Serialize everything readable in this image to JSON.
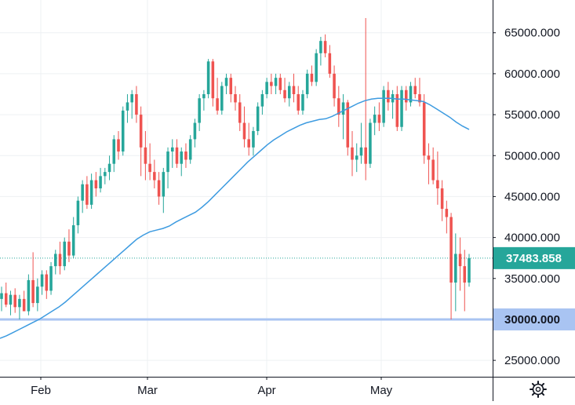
{
  "chart_data": {
    "type": "candlestick",
    "x_ticks": [
      "Feb",
      "Mar",
      "Apr",
      "May"
    ],
    "y_ticks": [
      25000,
      30000,
      35000,
      40000,
      45000,
      50000,
      55000,
      60000,
      65000
    ],
    "y_tick_labels": [
      "25000.000",
      "30000.000",
      "35000.000",
      "40000.000",
      "45000.000",
      "50000.000",
      "55000.000",
      "60000.000",
      "65000.000"
    ],
    "ylim": [
      23000,
      69000
    ],
    "grid": true,
    "last_price": 37483.858,
    "last_price_label": "37483.858",
    "horizontal_line_value": 30000,
    "horizontal_line_label": "30000.000",
    "colors": {
      "up": "#26a69a",
      "down": "#ef5350",
      "moving_average": "#3d9be0",
      "horizontal_line": "#a9c4f2",
      "last_price_badge": "#26a69a",
      "grid": "#eef0f3"
    },
    "candles": [
      [
        32500,
        34000,
        31000,
        33200
      ],
      [
        33200,
        34500,
        31500,
        31800
      ],
      [
        31800,
        33500,
        30500,
        33000
      ],
      [
        33000,
        33800,
        30800,
        31500
      ],
      [
        31500,
        33000,
        30000,
        32500
      ],
      [
        32500,
        33500,
        31000,
        31000
      ],
      [
        31000,
        35500,
        30500,
        34800
      ],
      [
        34800,
        38200,
        31500,
        32000
      ],
      [
        32000,
        35000,
        31000,
        34000
      ],
      [
        34000,
        36000,
        33000,
        35500
      ],
      [
        35500,
        36000,
        32500,
        33500
      ],
      [
        33500,
        37000,
        33000,
        36500
      ],
      [
        36500,
        38500,
        35500,
        38000
      ],
      [
        38000,
        39500,
        35500,
        36500
      ],
      [
        36500,
        40000,
        36000,
        39500
      ],
      [
        39500,
        41000,
        37000,
        37800
      ],
      [
        37800,
        42500,
        37500,
        41500
      ],
      [
        41500,
        45000,
        40500,
        44500
      ],
      [
        44500,
        47000,
        43000,
        46500
      ],
      [
        46500,
        47500,
        43500,
        44000
      ],
      [
        44000,
        47800,
        43500,
        47000
      ],
      [
        47000,
        48000,
        45000,
        46000
      ],
      [
        46000,
        48500,
        45500,
        47500
      ],
      [
        47500,
        48500,
        46500,
        48000
      ],
      [
        48000,
        50000,
        47000,
        49000
      ],
      [
        49000,
        52500,
        48000,
        52000
      ],
      [
        52000,
        53000,
        49500,
        50500
      ],
      [
        50500,
        56000,
        50000,
        55500
      ],
      [
        55500,
        57500,
        54000,
        56500
      ],
      [
        56500,
        58000,
        54500,
        57500
      ],
      [
        57500,
        58500,
        54000,
        55000
      ],
      [
        55000,
        56000,
        47500,
        51000
      ],
      [
        51000,
        53000,
        47000,
        49000
      ],
      [
        49000,
        51500,
        47000,
        48000
      ],
      [
        48000,
        49500,
        46000,
        47000
      ],
      [
        47000,
        48000,
        44000,
        45000
      ],
      [
        45000,
        48500,
        43000,
        48000
      ],
      [
        48000,
        51000,
        46000,
        50500
      ],
      [
        50500,
        52000,
        48500,
        51000
      ],
      [
        51000,
        52000,
        48500,
        49000
      ],
      [
        49000,
        51000,
        47500,
        50500
      ],
      [
        50500,
        51500,
        48500,
        49500
      ],
      [
        49500,
        52500,
        49000,
        52000
      ],
      [
        52000,
        54500,
        51000,
        54000
      ],
      [
        54000,
        57500,
        53000,
        57000
      ],
      [
        57000,
        58000,
        55500,
        57500
      ],
      [
        57500,
        61800,
        57000,
        61500
      ],
      [
        61500,
        61800,
        56000,
        57000
      ],
      [
        57000,
        59500,
        55000,
        55500
      ],
      [
        55500,
        59000,
        55000,
        58500
      ],
      [
        58500,
        60000,
        57500,
        59500
      ],
      [
        59500,
        60000,
        56500,
        57500
      ],
      [
        57500,
        58500,
        55500,
        56500
      ],
      [
        56500,
        57500,
        53000,
        54000
      ],
      [
        54000,
        56000,
        51000,
        52000
      ],
      [
        52000,
        54000,
        50000,
        51000
      ],
      [
        51000,
        53500,
        50000,
        53000
      ],
      [
        53000,
        56500,
        52500,
        56000
      ],
      [
        56000,
        58000,
        55000,
        57500
      ],
      [
        57500,
        59500,
        57000,
        59000
      ],
      [
        59000,
        60000,
        57500,
        58500
      ],
      [
        58500,
        60000,
        57500,
        59500
      ],
      [
        59500,
        60000,
        57500,
        58000
      ],
      [
        58000,
        59500,
        56500,
        57000
      ],
      [
        57000,
        59000,
        56000,
        58500
      ],
      [
        58500,
        60000,
        56500,
        57500
      ],
      [
        57500,
        58500,
        55000,
        55500
      ],
      [
        55500,
        58000,
        55000,
        57500
      ],
      [
        57500,
        60500,
        57000,
        60000
      ],
      [
        60000,
        61000,
        58500,
        59000
      ],
      [
        59000,
        63000,
        58500,
        62500
      ],
      [
        62500,
        64500,
        61000,
        64000
      ],
      [
        64000,
        64800,
        62000,
        62500
      ],
      [
        62500,
        63500,
        59500,
        60000
      ],
      [
        60000,
        61000,
        56000,
        57000
      ],
      [
        57000,
        58500,
        53500,
        55000
      ],
      [
        55000,
        57500,
        52000,
        56500
      ],
      [
        56500,
        56800,
        50000,
        51000
      ],
      [
        51000,
        53000,
        47500,
        49500
      ],
      [
        49500,
        51500,
        48000,
        50000
      ],
      [
        50000,
        54000,
        49000,
        51000
      ],
      [
        51000,
        66800,
        47000,
        49000
      ],
      [
        49000,
        54500,
        48500,
        54000
      ],
      [
        54000,
        56000,
        52500,
        55000
      ],
      [
        55000,
        56500,
        53000,
        54000
      ],
      [
        54000,
        58500,
        53500,
        58000
      ],
      [
        58000,
        59000,
        55500,
        56500
      ],
      [
        56500,
        58000,
        54500,
        57500
      ],
      [
        57500,
        58500,
        53000,
        53500
      ],
      [
        53500,
        58500,
        53000,
        58000
      ],
      [
        58000,
        58500,
        55500,
        56500
      ],
      [
        56500,
        59000,
        56000,
        58500
      ],
      [
        58500,
        59500,
        57000,
        57500
      ],
      [
        57500,
        59500,
        56000,
        56500
      ],
      [
        56500,
        57500,
        49000,
        50000
      ],
      [
        50000,
        51500,
        46500,
        49500
      ],
      [
        49500,
        51000,
        46500,
        47000
      ],
      [
        47000,
        50500,
        44000,
        46000
      ],
      [
        46000,
        47000,
        42000,
        43500
      ],
      [
        43500,
        44500,
        40500,
        42500
      ],
      [
        42500,
        43000,
        30000,
        34500
      ],
      [
        34500,
        40500,
        31000,
        38000
      ],
      [
        38000,
        40000,
        33500,
        36500
      ],
      [
        36500,
        38500,
        31000,
        34500
      ],
      [
        34500,
        38000,
        34000,
        37483.858
      ]
    ],
    "moving_average": [
      [
        27700,
        28000,
        28400,
        28800,
        29200,
        29600,
        30000,
        30500,
        31000,
        31500,
        32100,
        32800,
        33500,
        34200,
        34900,
        35600,
        36300,
        37000,
        37700,
        38400,
        39100,
        39800,
        40300,
        40700,
        40900,
        41100,
        41400,
        41900,
        42300,
        42700,
        43100,
        43700,
        44400,
        45200,
        46000,
        46800,
        47600,
        48400,
        49200,
        49900,
        50600,
        51300,
        51900,
        52400,
        52900,
        53300,
        53700,
        54000,
        54200,
        54400,
        54500,
        54800,
        55200,
        55600,
        56000,
        56400,
        56700,
        56900,
        57000,
        57000,
        57000,
        56900,
        56900,
        56800,
        56700,
        56600,
        56200,
        55700,
        55200,
        54700,
        54100,
        53600,
        53200
      ]
    ]
  }
}
